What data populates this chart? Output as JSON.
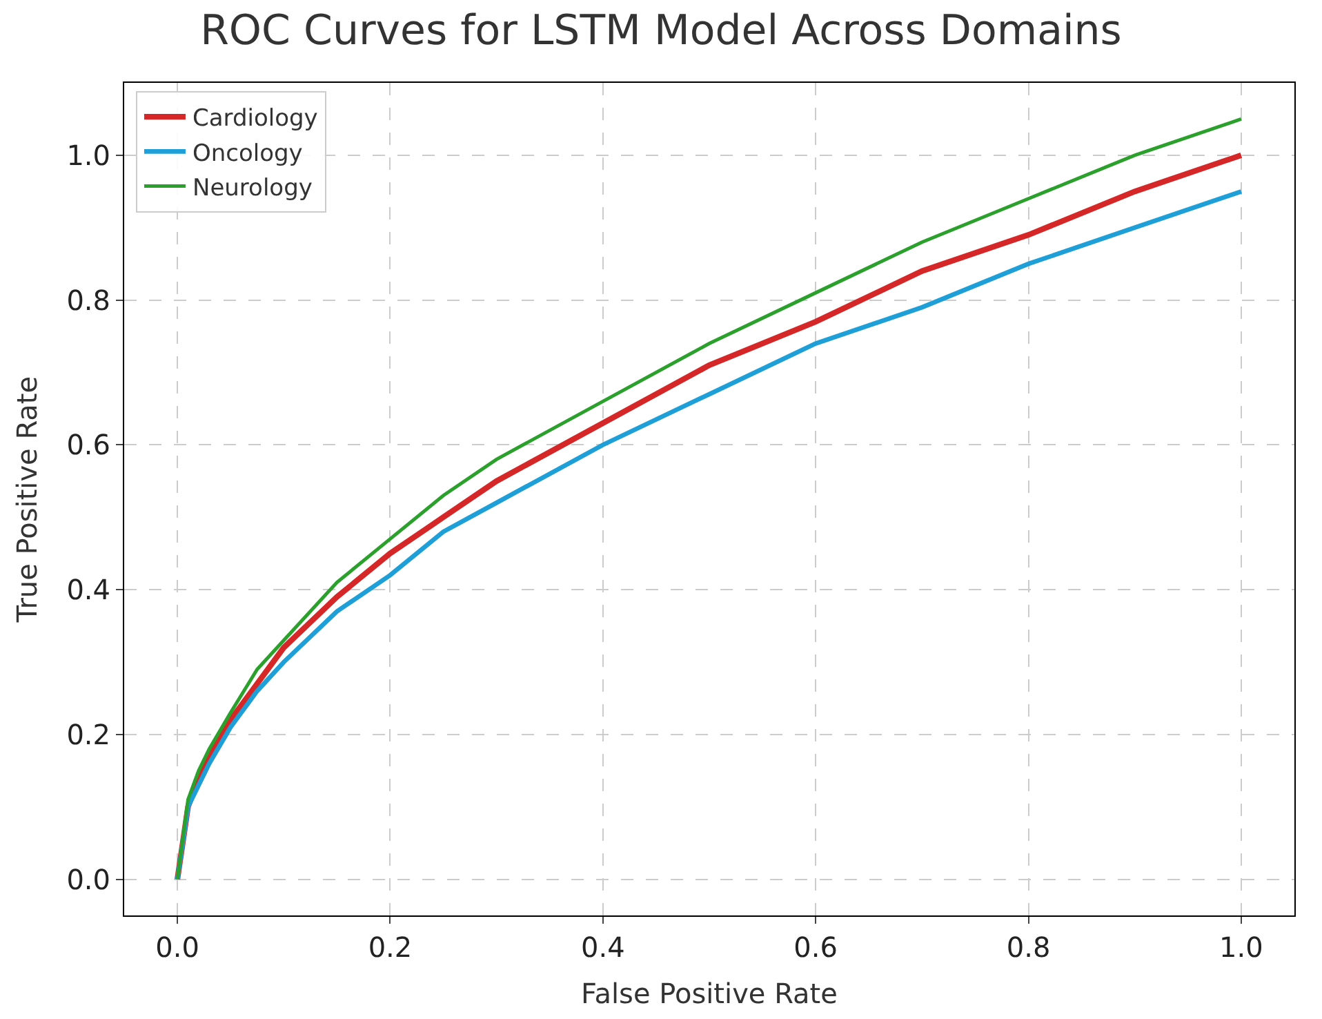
{
  "chart_data": {
    "type": "line",
    "title": "ROC Curves for LSTM Model Across Domains",
    "xlabel": "False Positive Rate",
    "ylabel": "True Positive Rate",
    "x": [
      0,
      0.01,
      0.02,
      0.03,
      0.05,
      0.075,
      0.1,
      0.15,
      0.2,
      0.25,
      0.3,
      0.4,
      0.5,
      0.6,
      0.7,
      0.8,
      0.9,
      1.0
    ],
    "series": [
      {
        "name": "Cardiology",
        "color": "#d62728",
        "values": [
          0,
          0.1,
          0.14,
          0.17,
          0.22,
          0.27,
          0.32,
          0.39,
          0.45,
          0.5,
          0.55,
          0.63,
          0.71,
          0.77,
          0.84,
          0.89,
          0.95,
          1.0
        ]
      },
      {
        "name": "Oncology",
        "color": "#1f9fd8",
        "values": [
          0,
          0.1,
          0.13,
          0.16,
          0.21,
          0.26,
          0.3,
          0.37,
          0.42,
          0.48,
          0.52,
          0.6,
          0.67,
          0.74,
          0.79,
          0.85,
          0.9,
          0.95
        ]
      },
      {
        "name": "Neurology",
        "color": "#2ca02c",
        "values": [
          0,
          0.11,
          0.15,
          0.18,
          0.23,
          0.29,
          0.33,
          0.41,
          0.47,
          0.53,
          0.58,
          0.66,
          0.74,
          0.81,
          0.88,
          0.94,
          1.0,
          1.05
        ]
      }
    ],
    "xlim": [
      -0.05,
      1.05
    ],
    "ylim": [
      -0.05,
      1.1
    ],
    "xticks": [
      {
        "value": 0,
        "label": "0.0"
      },
      0.2,
      0.4,
      0.6,
      0.8,
      {
        "value": 1,
        "label": "1.0"
      }
    ],
    "yticks": [
      {
        "value": 0,
        "label": "0.0"
      },
      0.2,
      0.4,
      0.6,
      0.8,
      {
        "value": 1,
        "label": "1.0"
      }
    ],
    "grid": true,
    "legend": "top left",
    "line_style": "solid",
    "marker": "none"
  }
}
